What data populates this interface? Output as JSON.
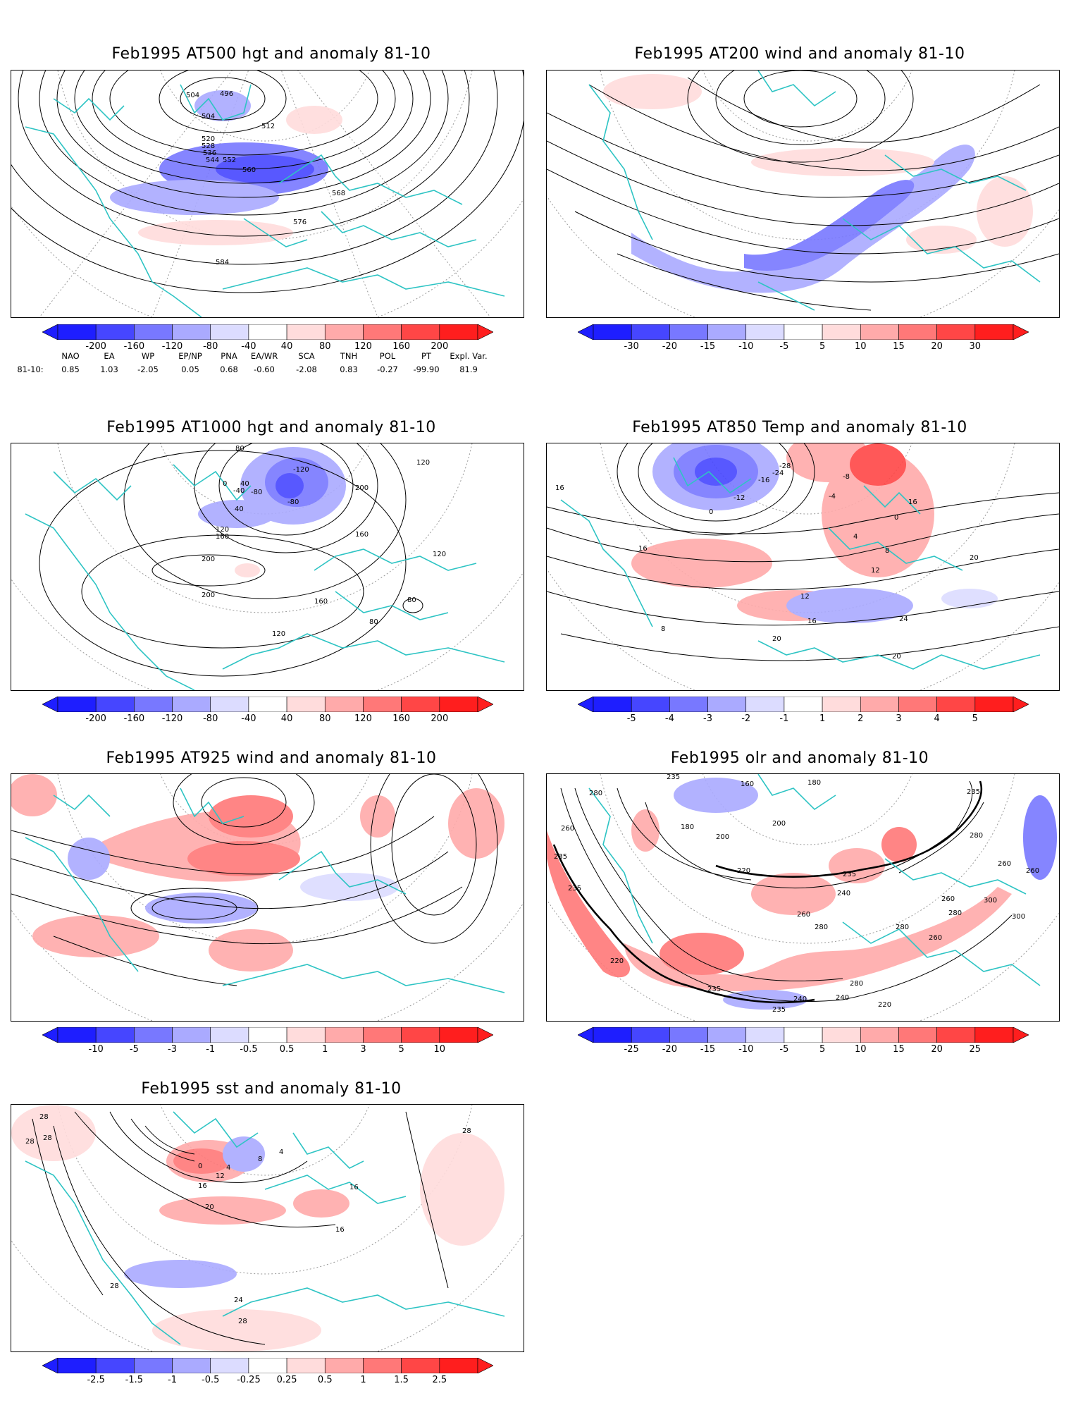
{
  "panels": [
    {
      "title": "Feb1995 AT500 hgt and anomaly 81-10",
      "contour_labels": [
        "496",
        "504",
        "504",
        "512",
        "520",
        "528",
        "536",
        "544",
        "552",
        "560",
        "568",
        "576",
        "584"
      ],
      "colorbar": [
        "-200",
        "-160",
        "-120",
        "-80",
        "-40",
        "40",
        "80",
        "120",
        "160",
        "200"
      ]
    },
    {
      "title": "Feb1995 AT200 wind and anomaly 81-10",
      "contour_labels": [],
      "colorbar": [
        "-30",
        "-20",
        "-15",
        "-10",
        "-5",
        "5",
        "10",
        "15",
        "20",
        "30"
      ]
    },
    {
      "title": "Feb1995 AT1000 hgt and anomaly 81-10",
      "contour_labels": [
        "80",
        "-120",
        "0",
        "40",
        "-40",
        "-80",
        "-80",
        "40",
        "200",
        "120",
        "160",
        "160",
        "120",
        "200",
        "120",
        "200",
        "160",
        "80",
        "80",
        "120",
        "0",
        "40",
        "80",
        "120"
      ],
      "colorbar": [
        "-200",
        "-160",
        "-120",
        "-80",
        "-40",
        "40",
        "80",
        "120",
        "160",
        "200"
      ]
    },
    {
      "title": "Feb1995 AT850 Temp and anomaly 81-10",
      "contour_labels": [
        "16",
        "16",
        "-28",
        "-24",
        "-16",
        "-12",
        "-8",
        "-4",
        "0",
        "0",
        "4",
        "8",
        "12",
        "12",
        "16",
        "20",
        "20",
        "24",
        "20",
        "16",
        "8"
      ],
      "colorbar": [
        "-5",
        "-4",
        "-3",
        "-2",
        "-1",
        "1",
        "2",
        "3",
        "4",
        "5"
      ]
    },
    {
      "title": "Feb1995 AT925 wind and anomaly 81-10",
      "contour_labels": [],
      "colorbar": [
        "-10",
        "-5",
        "-3",
        "-1",
        "-0.5",
        "0.5",
        "1",
        "3",
        "5",
        "10"
      ]
    },
    {
      "title": "Feb1995 olr and anomaly 81-10",
      "contour_labels": [
        "235",
        "280",
        "260",
        "235",
        "235",
        "200",
        "180",
        "160",
        "180",
        "200",
        "220",
        "235",
        "240",
        "260",
        "280",
        "300",
        "280",
        "260",
        "220",
        "240",
        "235",
        "235",
        "260",
        "280",
        "300",
        "260",
        "240",
        "220",
        "235",
        "280",
        "260",
        "280"
      ],
      "colorbar": [
        "-25",
        "-20",
        "-15",
        "-10",
        "-5",
        "5",
        "10",
        "15",
        "20",
        "25"
      ]
    },
    {
      "title": "Feb1995 sst and anomaly 81-10",
      "contour_labels": [
        "28",
        "28",
        "28",
        "0",
        "4",
        "8",
        "12",
        "16",
        "20",
        "24",
        "28",
        "28",
        "28",
        "4",
        "16",
        "16"
      ],
      "colorbar": [
        "-2.5",
        "-1.5",
        "-1",
        "-0.5",
        "-0.25",
        "0.25",
        "0.5",
        "1",
        "1.5",
        "2.5"
      ]
    }
  ],
  "teleconnection": {
    "headers": [
      "NAO",
      "EA",
      "WP",
      "EP/NP",
      "PNA",
      "EA/WR",
      "SCA",
      "TNH",
      "POL",
      "PT",
      "Expl. Var."
    ],
    "row_label": "81-10:",
    "values": [
      "0.85",
      "1.03",
      "-2.05",
      "0.05",
      "0.68",
      "-0.60",
      "-2.08",
      "0.83",
      "-0.27",
      "-99.90",
      "81.9"
    ]
  },
  "colors": {
    "coast": "#2ec4c4",
    "contour": "#000000",
    "grid": "#9a9a9a",
    "neg_scale": [
      "#1e1eff",
      "#4646ff",
      "#7878ff",
      "#aaaaff",
      "#dcdcff"
    ],
    "pos_scale": [
      "#ffdcdc",
      "#ffaaaa",
      "#ff7878",
      "#ff4646",
      "#ff1e1e"
    ]
  }
}
